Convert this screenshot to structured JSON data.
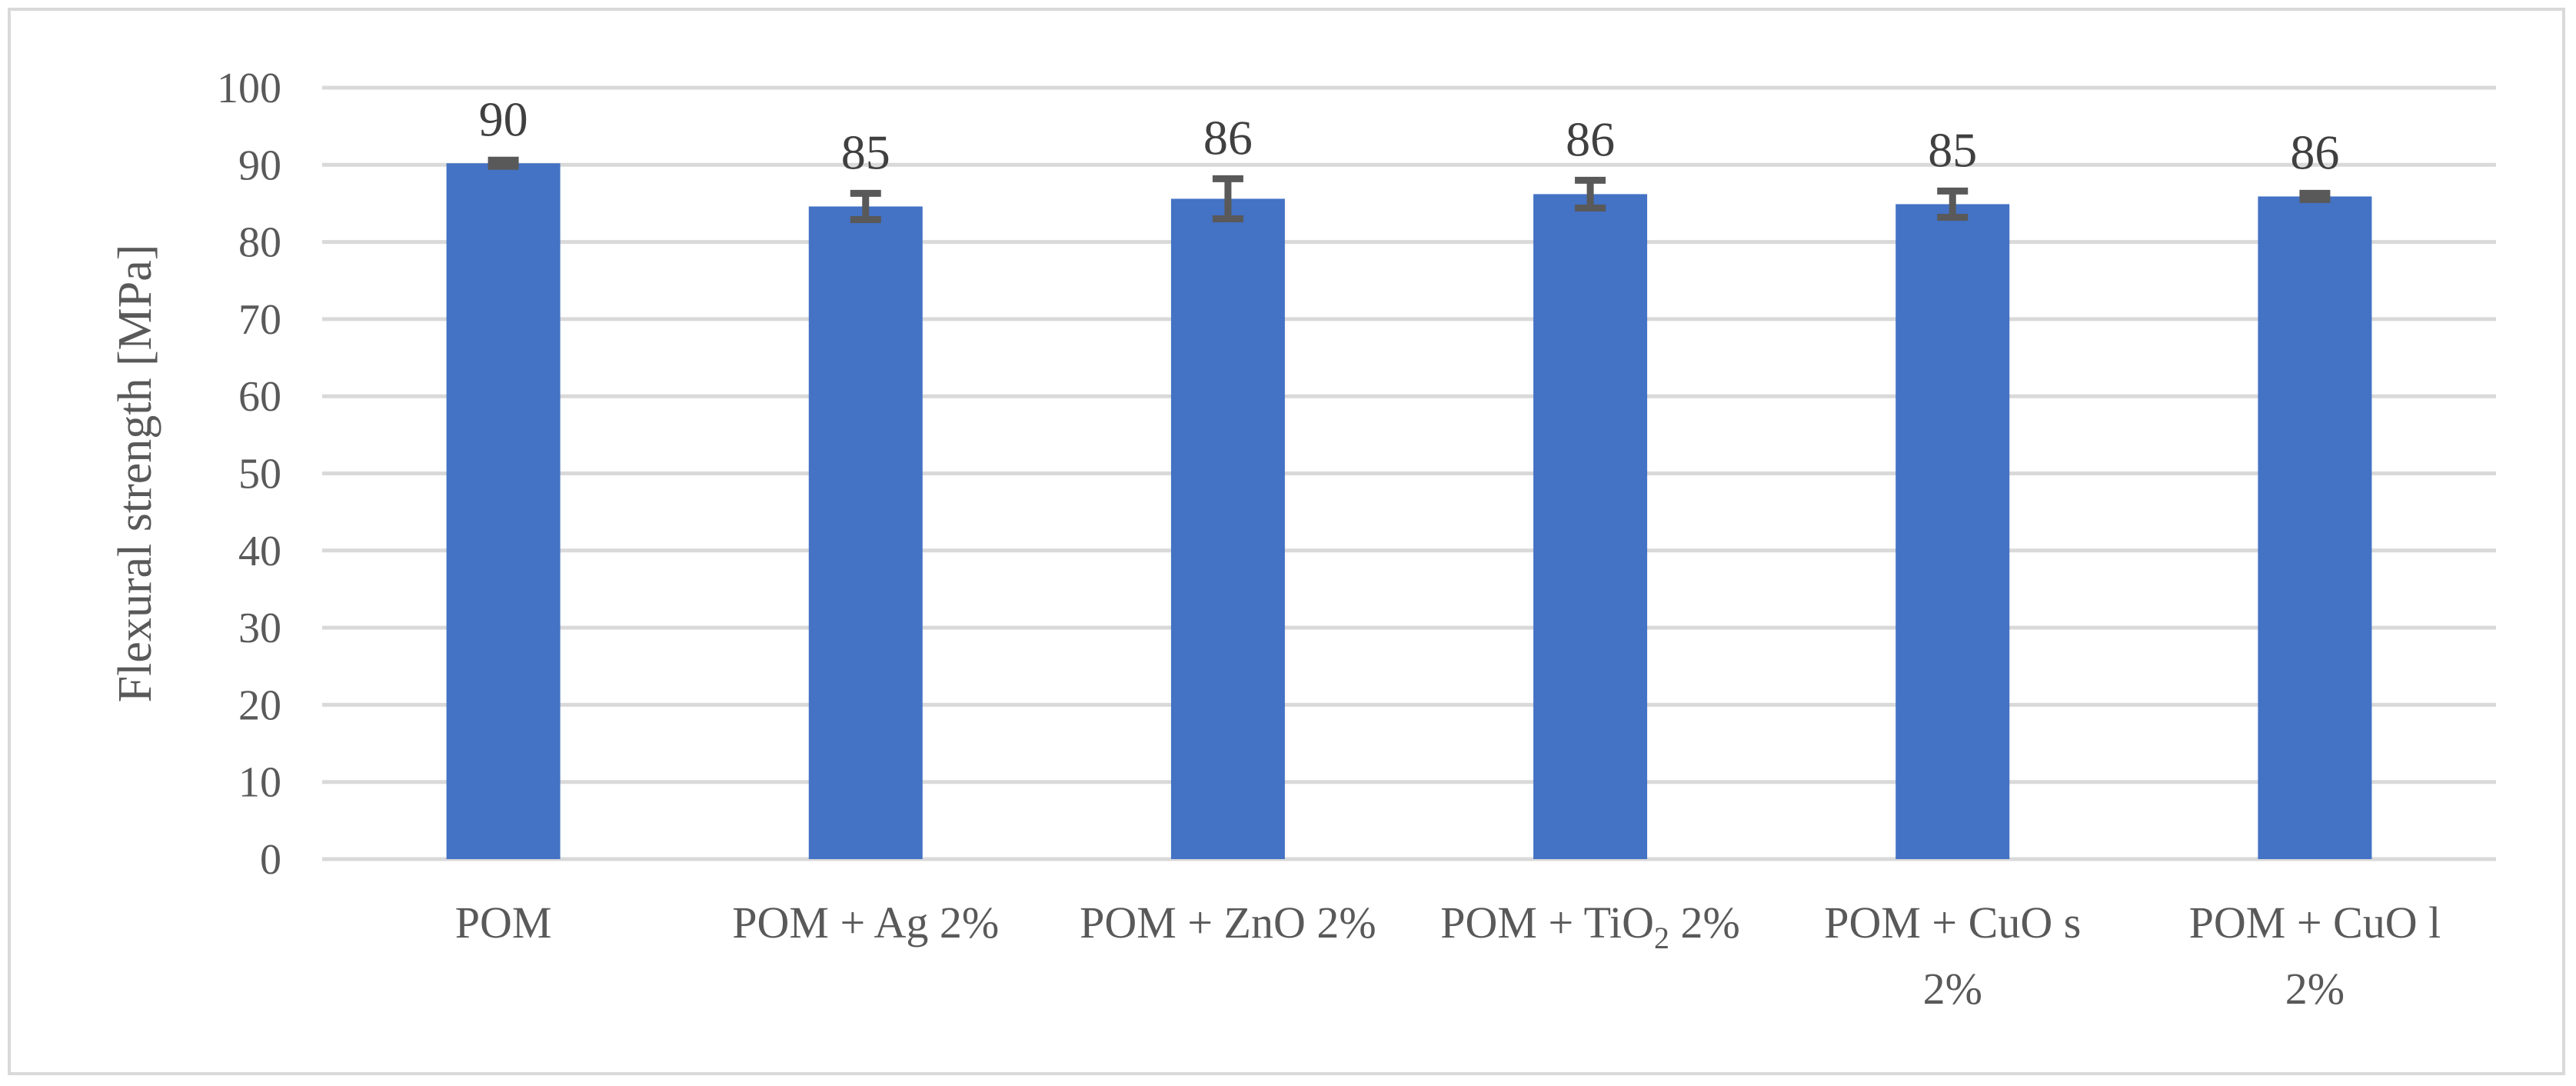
{
  "chart_data": {
    "type": "bar",
    "ylabel": "Flexural strength [MPa]",
    "xlabel": "",
    "ylim": [
      0,
      100
    ],
    "ytick_step": 10,
    "grid": true,
    "legend": "none",
    "bar_color": "#4472c4",
    "errorbar_color": "#595959",
    "categories": [
      {
        "parts": [
          {
            "t": "POM"
          }
        ]
      },
      {
        "parts": [
          {
            "t": "POM + Ag 2%"
          }
        ]
      },
      {
        "parts": [
          {
            "t": "POM + ZnO 2%"
          }
        ]
      },
      {
        "parts": [
          {
            "t": "POM + TiO"
          },
          {
            "t": "2",
            "sub": true
          },
          {
            "t": " 2%"
          }
        ]
      },
      {
        "lines": [
          "POM + CuO s",
          "2%"
        ]
      },
      {
        "lines": [
          "POM + CuO l",
          "2%"
        ]
      }
    ],
    "values": [
      90.2,
      84.6,
      85.6,
      86.2,
      84.9,
      85.9
    ],
    "errors": [
      0.4,
      1.7,
      2.6,
      1.8,
      1.7,
      0.4
    ],
    "data_labels": [
      "90",
      "85",
      "86",
      "86",
      "85",
      "86"
    ]
  }
}
